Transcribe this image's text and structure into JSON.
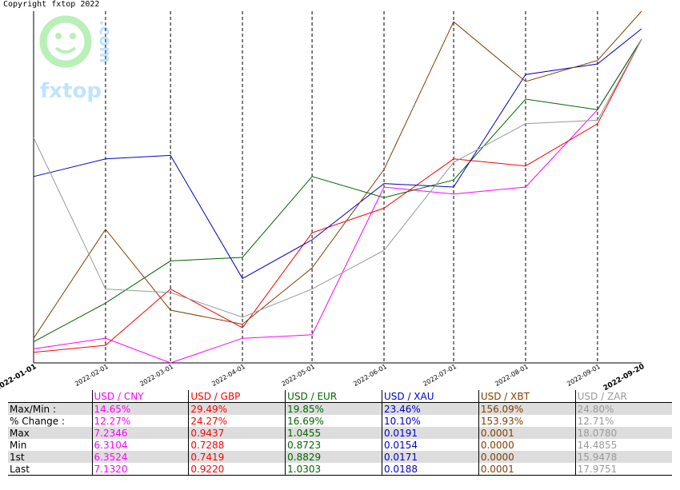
{
  "copyright": "Copyright fxtop 2022",
  "logo": {
    "text": "fxtop",
    "side_text": ".com",
    "icon": "smiley-face-icon"
  },
  "colors": {
    "USD / CNY": "#ff00ff",
    "USD / GBP": "#ff0000",
    "USD / EUR": "#006600",
    "USD / XAU": "#0000cc",
    "USD / XBT": "#804000",
    "USD / ZAR": "#999999"
  },
  "chart_data": {
    "type": "line",
    "x_tick_labels": [
      "2022-01-01",
      "2022-02-01",
      "2022-03-01",
      "2022-04-01",
      "2022-05-01",
      "2022-06-01",
      "2022-07-01",
      "2022-08-01",
      "2022-09-01",
      "2022-09-20"
    ],
    "grid": "dashed vertical lines at month boundaries",
    "y_axis": "normalized (each series scaled between its own min and max)",
    "series": [
      {
        "name": "USD / CNY",
        "x": [
          "2022-01-01",
          "2022-02-01",
          "2022-03-01",
          "2022-04-01",
          "2022-05-01",
          "2022-06-01",
          "2022-07-01",
          "2022-08-01",
          "2022-09-01",
          "2022-09-20"
        ],
        "y": [
          0.04,
          0.07,
          0.0,
          0.07,
          0.08,
          0.5,
          0.48,
          0.5,
          0.72,
          0.92
        ]
      },
      {
        "name": "USD / GBP",
        "x": [
          "2022-01-01",
          "2022-02-01",
          "2022-03-01",
          "2022-04-01",
          "2022-05-01",
          "2022-06-01",
          "2022-07-01",
          "2022-08-01",
          "2022-09-01",
          "2022-09-20"
        ],
        "y": [
          0.03,
          0.05,
          0.21,
          0.1,
          0.37,
          0.44,
          0.58,
          0.56,
          0.68,
          0.92
        ]
      },
      {
        "name": "USD / EUR",
        "x": [
          "2022-01-01",
          "2022-02-01",
          "2022-03-01",
          "2022-04-01",
          "2022-05-01",
          "2022-06-01",
          "2022-07-01",
          "2022-08-01",
          "2022-09-01",
          "2022-09-20"
        ],
        "y": [
          0.06,
          0.17,
          0.29,
          0.3,
          0.53,
          0.47,
          0.52,
          0.75,
          0.72,
          0.92
        ]
      },
      {
        "name": "USD / XAU",
        "x": [
          "2022-01-01",
          "2022-02-01",
          "2022-03-01",
          "2022-04-01",
          "2022-05-01",
          "2022-06-01",
          "2022-07-01",
          "2022-08-01",
          "2022-09-01",
          "2022-09-20"
        ],
        "y": [
          0.53,
          0.58,
          0.59,
          0.24,
          0.35,
          0.51,
          0.5,
          0.82,
          0.85,
          0.95
        ]
      },
      {
        "name": "USD / XBT",
        "x": [
          "2022-01-01",
          "2022-02-01",
          "2022-03-01",
          "2022-04-01",
          "2022-05-01",
          "2022-06-01",
          "2022-07-01",
          "2022-08-01",
          "2022-09-01",
          "2022-09-20"
        ],
        "y": [
          0.07,
          0.38,
          0.15,
          0.11,
          0.27,
          0.55,
          0.97,
          0.8,
          0.86,
          1.0
        ]
      },
      {
        "name": "USD / ZAR",
        "x": [
          "2022-01-01",
          "2022-02-01",
          "2022-03-01",
          "2022-04-01",
          "2022-05-01",
          "2022-06-01",
          "2022-07-01",
          "2022-08-01",
          "2022-09-01",
          "2022-09-20"
        ],
        "y": [
          0.64,
          0.21,
          0.2,
          0.13,
          0.21,
          0.32,
          0.57,
          0.68,
          0.69,
          0.92
        ]
      }
    ]
  },
  "table": {
    "row_labels": [
      "Max/Min :",
      "% Change :",
      "Max",
      "Min",
      "1st",
      "Last"
    ],
    "columns": [
      {
        "header": "USD / CNY",
        "values": [
          "14.65%",
          "12.27%",
          "7.2346",
          "6.3104",
          "6.3524",
          "7.1320"
        ]
      },
      {
        "header": "USD / GBP",
        "values": [
          "29.49%",
          "24.27%",
          "0.9437",
          "0.7288",
          "0.7419",
          "0.9220"
        ]
      },
      {
        "header": "USD / EUR",
        "values": [
          "19.85%",
          "16.69%",
          "1.0455",
          "0.8723",
          "0.8829",
          "1.0303"
        ]
      },
      {
        "header": "USD / XAU",
        "values": [
          "23.46%",
          "10.10%",
          "0.0191",
          "0.0154",
          "0.0171",
          "0.0188"
        ]
      },
      {
        "header": "USD / XBT",
        "values": [
          "156.09%",
          "153.93%",
          "0.0001",
          "0.0000",
          "0.0000",
          "0.0001"
        ]
      },
      {
        "header": "USD / ZAR",
        "values": [
          "24.80%",
          "12.71%",
          "18.0780",
          "14.4855",
          "15.9478",
          "17.9751"
        ]
      }
    ]
  }
}
